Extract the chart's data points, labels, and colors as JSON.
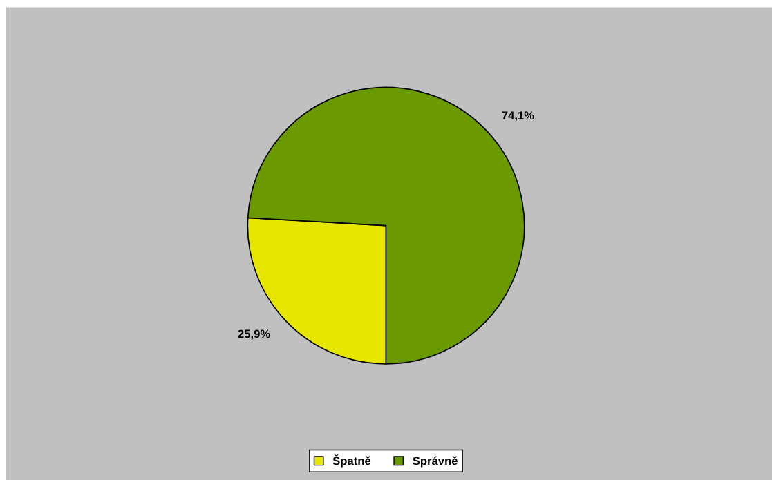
{
  "chart_data": {
    "type": "pie",
    "categories": [
      "Špatně",
      "Správně"
    ],
    "values": [
      25.9,
      74.1
    ],
    "colors": [
      "#e6e600",
      "#6b9a00"
    ],
    "value_labels": [
      "25,9%",
      "74,1%"
    ],
    "legend": "bottom"
  }
}
